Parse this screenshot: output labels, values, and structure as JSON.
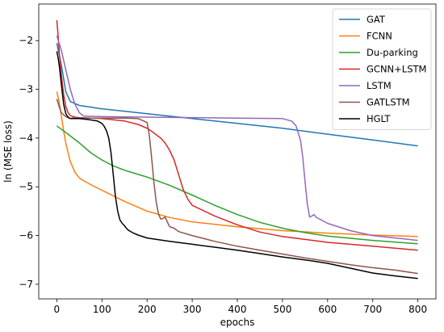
{
  "chart_data": {
    "type": "line",
    "xlabel": "epochs",
    "ylabel": "ln (MSE loss)",
    "xlim": [
      -40,
      840
    ],
    "ylim": [
      -7.3,
      -1.25
    ],
    "xticks": [
      0,
      100,
      200,
      300,
      400,
      500,
      600,
      700,
      800
    ],
    "yticks": [
      -7,
      -6,
      -5,
      -4,
      -3,
      -2
    ],
    "grid": false,
    "legend_position": "top-right",
    "series": [
      {
        "name": "GAT",
        "color": "#1f77b4",
        "x": [
          0,
          10,
          20,
          30,
          50,
          100,
          200,
          300,
          400,
          500,
          600,
          700,
          800
        ],
        "y": [
          -2.05,
          -2.5,
          -3.05,
          -3.25,
          -3.33,
          -3.4,
          -3.5,
          -3.6,
          -3.7,
          -3.8,
          -3.92,
          -4.04,
          -4.16
        ]
      },
      {
        "name": "FCNN",
        "color": "#ff7f0e",
        "x": [
          0,
          5,
          10,
          15,
          20,
          25,
          30,
          40,
          50,
          60,
          80,
          100,
          150,
          200,
          250,
          300,
          400,
          500,
          600,
          700,
          800
        ],
        "y": [
          -3.05,
          -3.25,
          -3.55,
          -3.85,
          -4.1,
          -4.3,
          -4.48,
          -4.7,
          -4.82,
          -4.88,
          -4.98,
          -5.07,
          -5.3,
          -5.5,
          -5.63,
          -5.72,
          -5.82,
          -5.9,
          -5.95,
          -5.99,
          -6.02
        ]
      },
      {
        "name": "Du-parking",
        "color": "#2ca02c",
        "x": [
          0,
          25,
          50,
          75,
          100,
          125,
          150,
          175,
          200,
          250,
          300,
          350,
          400,
          450,
          500,
          550,
          600,
          700,
          800
        ],
        "y": [
          -3.75,
          -3.92,
          -4.1,
          -4.3,
          -4.45,
          -4.57,
          -4.66,
          -4.73,
          -4.8,
          -4.97,
          -5.17,
          -5.38,
          -5.57,
          -5.73,
          -5.85,
          -5.94,
          -6.01,
          -6.1,
          -6.17
        ]
      },
      {
        "name": "GCNN+LSTM",
        "color": "#d62728",
        "x": [
          0,
          3,
          6,
          10,
          15,
          20,
          25,
          30,
          40,
          50,
          100,
          150,
          180,
          200,
          210,
          220,
          230,
          240,
          250,
          260,
          270,
          280,
          290,
          300,
          350,
          400,
          450,
          500,
          550,
          600,
          700,
          800
        ],
        "y": [
          -1.58,
          -1.9,
          -2.3,
          -2.7,
          -3.1,
          -3.35,
          -3.48,
          -3.54,
          -3.57,
          -3.58,
          -3.6,
          -3.65,
          -3.72,
          -3.8,
          -3.86,
          -3.93,
          -4.0,
          -4.1,
          -4.25,
          -4.45,
          -4.75,
          -5.05,
          -5.25,
          -5.38,
          -5.6,
          -5.78,
          -5.93,
          -6.02,
          -6.08,
          -6.14,
          -6.22,
          -6.3
        ]
      },
      {
        "name": "LSTM",
        "color": "#9467bd",
        "x": [
          0,
          10,
          20,
          30,
          40,
          50,
          60,
          100,
          200,
          300,
          400,
          500,
          520,
          530,
          540,
          545,
          550,
          555,
          560,
          565,
          570,
          575,
          580,
          600,
          650,
          700,
          750,
          800
        ],
        "y": [
          -1.9,
          -2.2,
          -2.6,
          -3.0,
          -3.3,
          -3.48,
          -3.55,
          -3.56,
          -3.57,
          -3.58,
          -3.59,
          -3.6,
          -3.65,
          -3.75,
          -4.05,
          -4.4,
          -4.9,
          -5.35,
          -5.62,
          -5.6,
          -5.57,
          -5.63,
          -5.65,
          -5.75,
          -5.9,
          -6.0,
          -6.05,
          -6.1
        ]
      },
      {
        "name": "GATLSTM",
        "color": "#8c564b",
        "x": [
          0,
          5,
          10,
          20,
          30,
          40,
          50,
          100,
          150,
          180,
          200,
          205,
          210,
          215,
          220,
          225,
          230,
          235,
          240,
          250,
          260,
          270,
          300,
          350,
          400,
          450,
          500,
          550,
          600,
          650,
          700,
          750,
          800
        ],
        "y": [
          -3.2,
          -3.35,
          -3.48,
          -3.56,
          -3.6,
          -3.58,
          -3.59,
          -3.59,
          -3.59,
          -3.6,
          -3.68,
          -3.95,
          -4.4,
          -4.9,
          -5.3,
          -5.55,
          -5.66,
          -5.65,
          -5.62,
          -5.82,
          -5.85,
          -5.92,
          -6.0,
          -6.12,
          -6.22,
          -6.3,
          -6.38,
          -6.46,
          -6.53,
          -6.6,
          -6.66,
          -6.71,
          -6.78
        ]
      },
      {
        "name": "HGLT",
        "color": "#000000",
        "x": [
          0,
          3,
          6,
          10,
          15,
          20,
          25,
          30,
          40,
          50,
          70,
          90,
          100,
          105,
          110,
          115,
          120,
          125,
          130,
          135,
          140,
          145,
          150,
          155,
          160,
          170,
          180,
          200,
          250,
          300,
          350,
          400,
          450,
          500,
          550,
          600,
          650,
          700,
          750,
          800
        ],
        "y": [
          -2.22,
          -2.35,
          -2.55,
          -2.9,
          -3.3,
          -3.5,
          -3.57,
          -3.6,
          -3.6,
          -3.6,
          -3.62,
          -3.65,
          -3.7,
          -3.76,
          -3.85,
          -4.0,
          -4.3,
          -4.75,
          -5.2,
          -5.5,
          -5.68,
          -5.75,
          -5.8,
          -5.86,
          -5.9,
          -5.95,
          -5.99,
          -6.05,
          -6.12,
          -6.18,
          -6.24,
          -6.3,
          -6.37,
          -6.44,
          -6.5,
          -6.57,
          -6.67,
          -6.77,
          -6.83,
          -6.88
        ]
      }
    ]
  }
}
